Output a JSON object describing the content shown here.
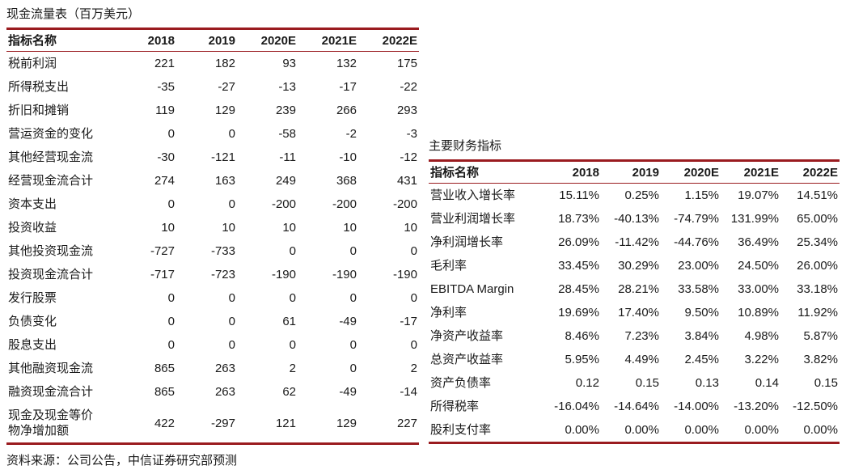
{
  "colors": {
    "accent_red": "#9A1B1F",
    "text": "#1A1A1A",
    "background": "#FFFFFF"
  },
  "cash_flow_table": {
    "title": "现金流量表（百万美元）",
    "columns": [
      "指标名称",
      "2018",
      "2019",
      "2020E",
      "2021E",
      "2022E"
    ],
    "rows": [
      {
        "label": "税前利润",
        "values": [
          "221",
          "182",
          "93",
          "132",
          "175"
        ]
      },
      {
        "label": "所得税支出",
        "values": [
          "-35",
          "-27",
          "-13",
          "-17",
          "-22"
        ]
      },
      {
        "label": "折旧和摊销",
        "values": [
          "119",
          "129",
          "239",
          "266",
          "293"
        ]
      },
      {
        "label": "营运资金的变化",
        "values": [
          "0",
          "0",
          "-58",
          "-2",
          "-3"
        ]
      },
      {
        "label": "其他经营现金流",
        "values": [
          "-30",
          "-121",
          "-11",
          "-10",
          "-12"
        ]
      },
      {
        "label": "经营现金流合计",
        "values": [
          "274",
          "163",
          "249",
          "368",
          "431"
        ]
      },
      {
        "label": "资本支出",
        "values": [
          "0",
          "0",
          "-200",
          "-200",
          "-200"
        ]
      },
      {
        "label": "投资收益",
        "values": [
          "10",
          "10",
          "10",
          "10",
          "10"
        ]
      },
      {
        "label": "其他投资现金流",
        "values": [
          "-727",
          "-733",
          "0",
          "0",
          "0"
        ]
      },
      {
        "label": "投资现金流合计",
        "values": [
          "-717",
          "-723",
          "-190",
          "-190",
          "-190"
        ]
      },
      {
        "label": "发行股票",
        "values": [
          "0",
          "0",
          "0",
          "0",
          "0"
        ]
      },
      {
        "label": "负债变化",
        "values": [
          "0",
          "0",
          "61",
          "-49",
          "-17"
        ]
      },
      {
        "label": "股息支出",
        "values": [
          "0",
          "0",
          "0",
          "0",
          "0"
        ]
      },
      {
        "label": "其他融资现金流",
        "values": [
          "865",
          "263",
          "2",
          "0",
          "2"
        ]
      },
      {
        "label": "融资现金流合计",
        "values": [
          "865",
          "263",
          "62",
          "-49",
          "-14"
        ]
      },
      {
        "label": "现金及现金等价物净增加额",
        "values": [
          "422",
          "-297",
          "121",
          "129",
          "227"
        ]
      }
    ]
  },
  "key_indicators_table": {
    "title": "主要财务指标",
    "columns": [
      "指标名称",
      "2018",
      "2019",
      "2020E",
      "2021E",
      "2022E"
    ],
    "rows": [
      {
        "label": "营业收入增长率",
        "values": [
          "15.11%",
          "0.25%",
          "1.15%",
          "19.07%",
          "14.51%"
        ]
      },
      {
        "label": "营业利润增长率",
        "values": [
          "18.73%",
          "-40.13%",
          "-74.79%",
          "131.99%",
          "65.00%"
        ]
      },
      {
        "label": "净利润增长率",
        "values": [
          "26.09%",
          "-11.42%",
          "-44.76%",
          "36.49%",
          "25.34%"
        ]
      },
      {
        "label": "毛利率",
        "values": [
          "33.45%",
          "30.29%",
          "23.00%",
          "24.50%",
          "26.00%"
        ]
      },
      {
        "label": "EBITDA Margin",
        "values": [
          "28.45%",
          "28.21%",
          "33.58%",
          "33.00%",
          "33.18%"
        ]
      },
      {
        "label": "净利率",
        "values": [
          "19.69%",
          "17.40%",
          "9.50%",
          "10.89%",
          "11.92%"
        ]
      },
      {
        "label": "净资产收益率",
        "values": [
          "8.46%",
          "7.23%",
          "3.84%",
          "4.98%",
          "5.87%"
        ]
      },
      {
        "label": "总资产收益率",
        "values": [
          "5.95%",
          "4.49%",
          "2.45%",
          "3.22%",
          "3.82%"
        ]
      },
      {
        "label": "资产负债率",
        "values": [
          "0.12",
          "0.15",
          "0.13",
          "0.14",
          "0.15"
        ]
      },
      {
        "label": "所得税率",
        "values": [
          "-16.04%",
          "-14.64%",
          "-14.00%",
          "-13.20%",
          "-12.50%"
        ]
      },
      {
        "label": "股利支付率",
        "values": [
          "0.00%",
          "0.00%",
          "0.00%",
          "0.00%",
          "0.00%"
        ]
      }
    ]
  },
  "footer": {
    "source": "资料来源：公司公告，中信证券研究部预测"
  }
}
